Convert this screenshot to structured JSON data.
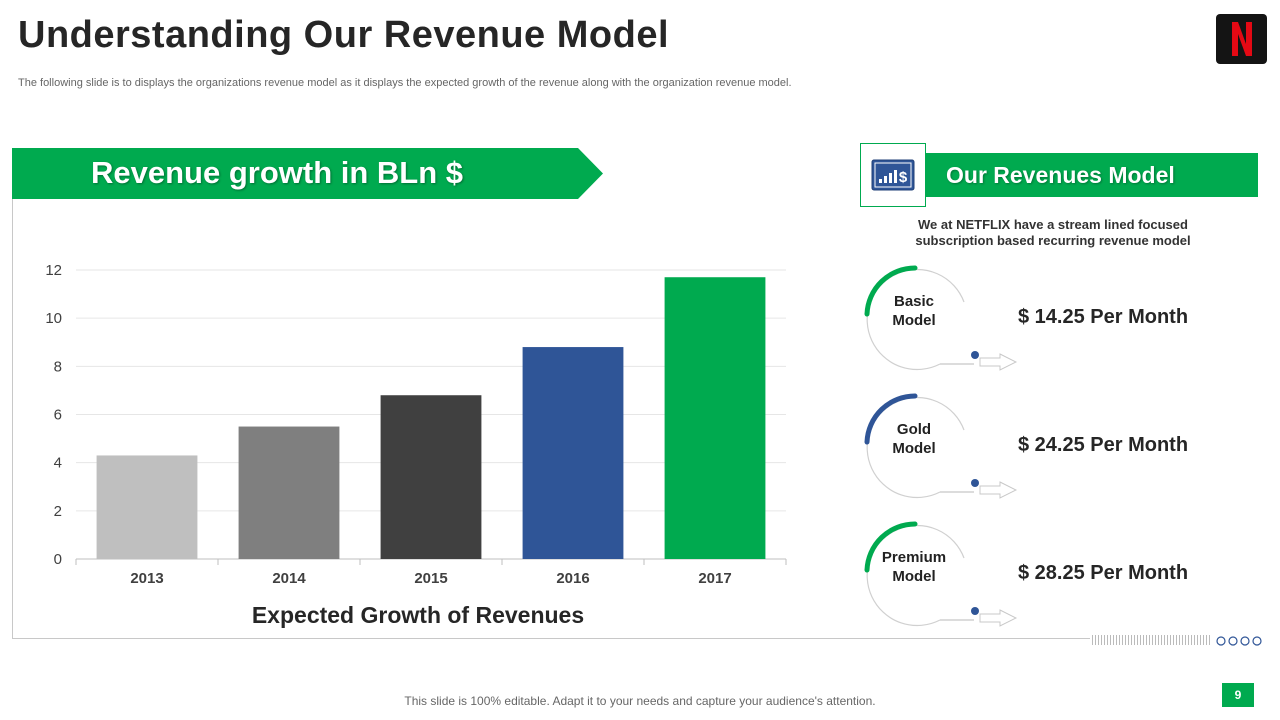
{
  "header": {
    "title": "Understanding Our Revenue Model",
    "subtitle": "The following slide is to displays the organizations revenue model as it displays the expected growth of the revenue along with the organization revenue model."
  },
  "logo": {
    "letter": "N",
    "icon": "netflix-logo-icon",
    "color": "#e50914"
  },
  "left_panel": {
    "banner": "Revenue growth in BLn $",
    "caption": "Expected Growth of Revenues"
  },
  "chart_data": {
    "type": "bar",
    "categories": [
      "2013",
      "2014",
      "2015",
      "2016",
      "2017"
    ],
    "values": [
      4.3,
      5.5,
      6.8,
      8.8,
      11.7
    ],
    "colors": [
      "#bfbfbf",
      "#7f7f7f",
      "#404040",
      "#2f5597",
      "#00aa4f"
    ],
    "yticks": [
      "0",
      "2",
      "4",
      "6",
      "8",
      "10",
      "12"
    ],
    "ylim": [
      0,
      12
    ],
    "title": "",
    "xlabel": "Expected Growth of Revenues",
    "ylabel": "",
    "grid": true
  },
  "right_panel": {
    "banner": "Our Revenues Model",
    "icon": "dollar-chart-icon",
    "intro": "We at NETFLIX have a stream lined focused subscription based recurring revenue model",
    "plans": [
      {
        "line1": "Basic",
        "line2": "Model",
        "price": "$ 14.25 Per Month",
        "arc_color": "#00aa4f"
      },
      {
        "line1": "Gold",
        "line2": "Model",
        "price": "$ 24.25 Per Month",
        "arc_color": "#2f5597"
      },
      {
        "line1": "Premium",
        "line2": "Model",
        "price": "$ 28.25 Per Month",
        "arc_color": "#00aa4f"
      }
    ]
  },
  "footer": {
    "note": "This slide is 100% editable. Adapt it to your needs and capture your audience's attention.",
    "page_number": "9"
  },
  "colors": {
    "accent": "#00aa4f",
    "blue": "#2f5597",
    "dark": "#262626"
  }
}
